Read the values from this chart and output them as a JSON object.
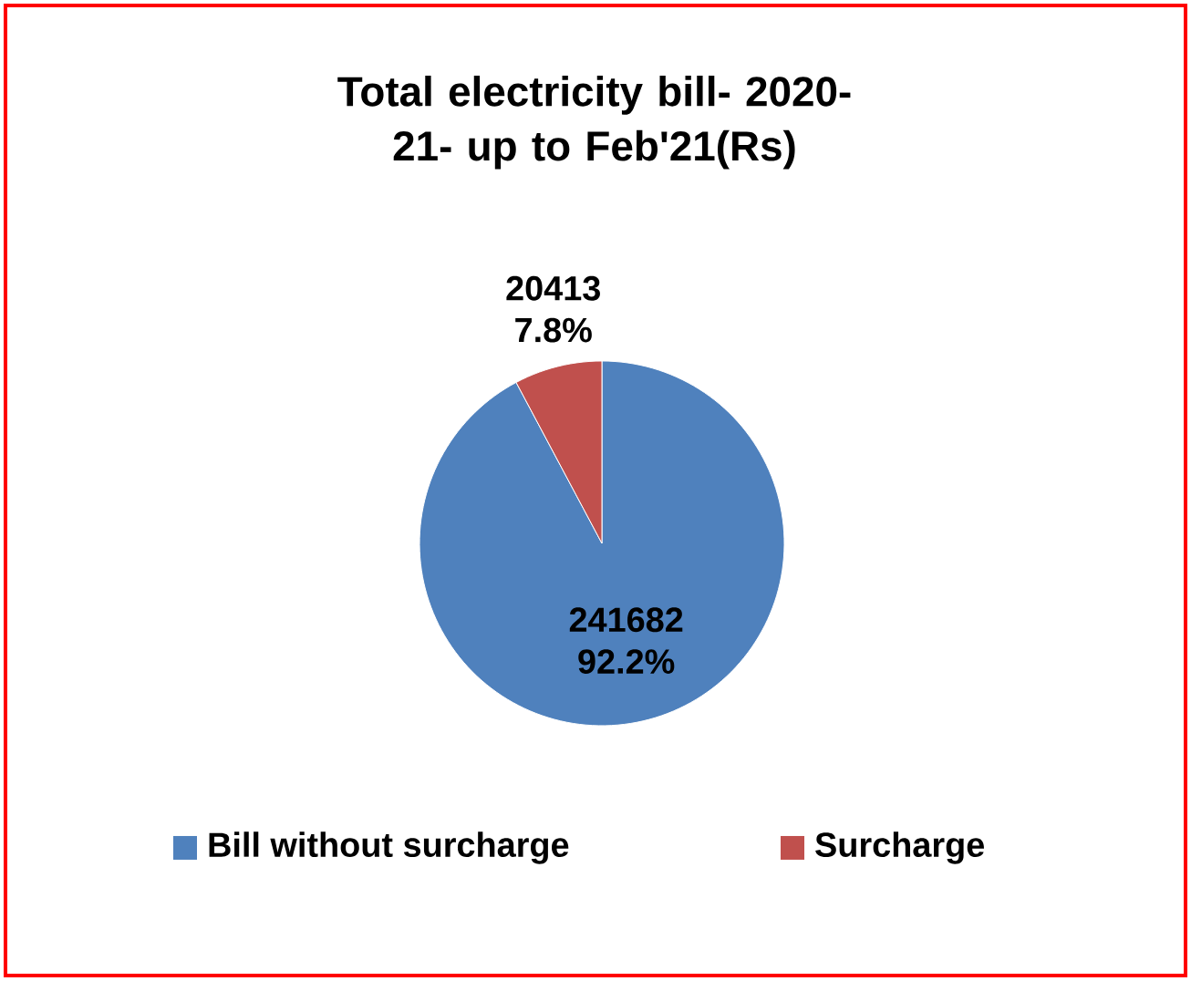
{
  "chart_data": {
    "type": "pie",
    "title": "Total electricity bill- 2020-21- up to Feb'21(Rs)",
    "categories": [
      "Bill without surcharge",
      "Surcharge"
    ],
    "values": [
      241682,
      20413
    ],
    "colors": [
      "#4f81bd",
      "#c0504d"
    ],
    "value_labels": [
      "241682 92.2%",
      "20413 7.8%"
    ],
    "legend": "bottom"
  }
}
